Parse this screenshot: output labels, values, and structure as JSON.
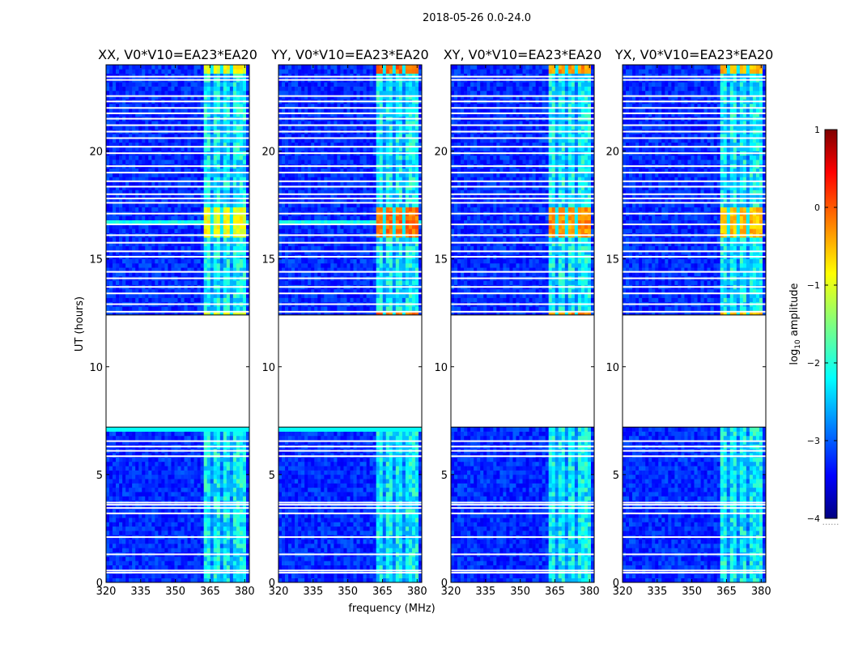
{
  "chart_data": {
    "type": "heatmap",
    "suptitle": "2018-05-26 0.0-24.0",
    "xlabel": "frequency (MHz)",
    "ylabel": "UT (hours)",
    "xlim": [
      320,
      382
    ],
    "ylim": [
      0,
      24
    ],
    "xticks": [
      "320",
      "335",
      "350",
      "365",
      "380"
    ],
    "yticks": [
      "0",
      "5",
      "10",
      "15",
      "20"
    ],
    "panels": [
      {
        "title": "XX, V0*V10=EA23*EA20",
        "rfi_peak": -0.7
      },
      {
        "title": "YY, V0*V10=EA23*EA20",
        "rfi_peak": 0.1
      },
      {
        "title": "XY, V0*V10=EA23*EA20",
        "rfi_peak": -0.1
      },
      {
        "title": "YX, V0*V10=EA23*EA20",
        "rfi_peak": -0.3
      }
    ],
    "data_gap_hours": [
      7.2,
      12.4
    ],
    "rfi_band_mhz": [
      362,
      380
    ],
    "colorbar": {
      "label": "log10 amplitude",
      "min": -4,
      "max": 1,
      "ticks": [
        "1",
        "0",
        "−1",
        "−2",
        "−3",
        "−4"
      ],
      "footnote": "......"
    }
  }
}
